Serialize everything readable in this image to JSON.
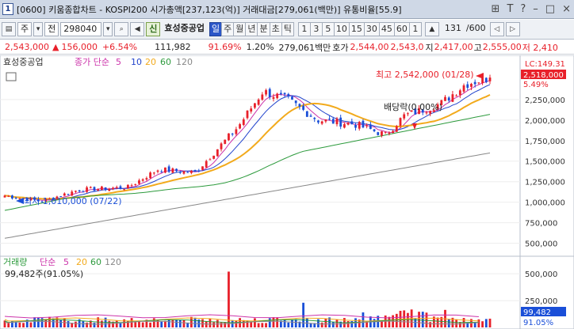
{
  "window": {
    "number": "1",
    "title": "[0600] 키움종합차트 - KOSPI200 시가총액[237,123(억)] 거래대금[279,061(백만)] 유통비율[55.9]"
  },
  "toolbar": {
    "market": "주",
    "mode": "전",
    "code": "298040",
    "shin_badge": "신",
    "stock_name": "효성중공업",
    "period_labels": [
      "일",
      "주",
      "월",
      "년",
      "분",
      "초",
      "틱"
    ],
    "active_period": "일",
    "intervals": [
      "1",
      "3",
      "5",
      "10",
      "15",
      "30",
      "45",
      "60",
      "1"
    ],
    "count": "131",
    "count_total": "/600"
  },
  "info": {
    "price": "2,543,000",
    "change_arrow": "▲",
    "change": "156,000",
    "change_pct": "+6.54%",
    "volume": "111,982",
    "volume_ratio": "91.69%",
    "turnover": "1.20%",
    "amount": "279,061백만",
    "bid_label": "호가",
    "bid": "2,544,00",
    "ask": "2,543,0",
    "low_label": "지",
    "low": "2,417,00",
    "high_label": "고",
    "high": "2,555,00",
    "extra": "저 2,410"
  },
  "price_panel": {
    "stock_name": "효성중공업",
    "ma_label": "종가 단순",
    "ma_periods": [
      "5",
      "10",
      "20",
      "60",
      "120"
    ],
    "ma_colors": [
      "#cc33aa",
      "#2244cc",
      "#f2aa1c",
      "#2c9a3c",
      "#888888"
    ],
    "high_annotation": "최고 2,542,000 (01/28)",
    "low_annotation": "최저 1,010,000 (07/22)",
    "dividend_label": "배당락(0.00%)",
    "lc_label": "LC:149.31",
    "current_price_tag": "2,518,000",
    "current_pct_tag": "5.49%"
  },
  "volume_panel": {
    "label": "거래량",
    "ma_label": "단순",
    "ma_periods": [
      "5",
      "20",
      "60",
      "120"
    ],
    "readout": "99,482주(91.05%)",
    "current_tag": "99,482",
    "current_pct": "91.05%"
  },
  "colors": {
    "up": "#e8202a",
    "down": "#1a4fd8",
    "ma5": "#cc33aa",
    "ma10": "#2244cc",
    "ma20": "#f2aa1c",
    "ma60": "#2c9a3c",
    "ma120": "#888888"
  },
  "chart_data": {
    "type": "candlestick",
    "price_axis_ticks": [
      "2,250,000",
      "2,000,000",
      "1,750,000",
      "1,500,000",
      "1,250,000",
      "1,000,000",
      "750,000",
      "500,000"
    ],
    "price_axis_values": [
      2250000,
      2000000,
      1750000,
      1500000,
      1250000,
      1000000,
      750000,
      500000
    ],
    "volume_axis_ticks": [
      "500,000",
      "250,000"
    ],
    "volume_axis_values": [
      500000,
      250000
    ],
    "high_value": 2542000,
    "low_value": 1010000,
    "last_close": 2518000
  }
}
